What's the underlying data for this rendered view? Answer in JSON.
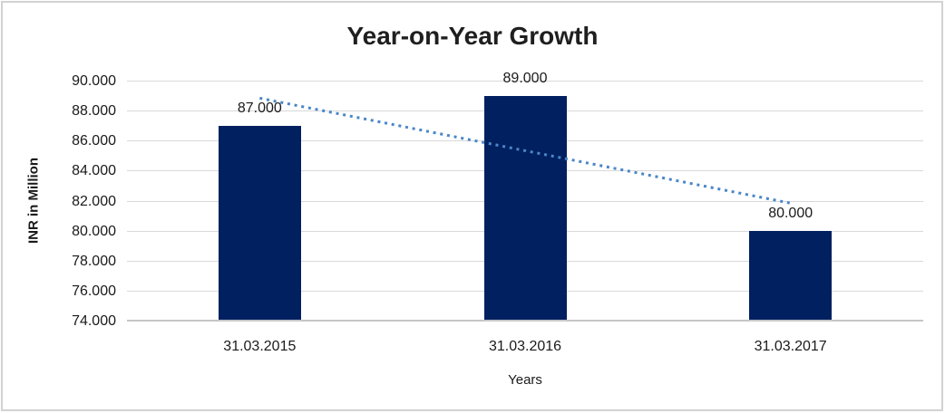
{
  "frame": {
    "background_color": "#FFFFFF",
    "border_color": "#D2D2D2"
  },
  "chart_data": {
    "type": "bar",
    "title": "Year-on-Year Growth",
    "xlabel": "Years",
    "ylabel": "INR in Million",
    "categories": [
      "31.03.2015",
      "31.03.2016",
      "31.03.2017"
    ],
    "values": [
      87,
      89,
      80
    ],
    "data_labels": [
      "87.000",
      "89.000",
      "80.000"
    ],
    "y_ticks": [
      "90.000",
      "88.000",
      "86.000",
      "84.000",
      "82.000",
      "80.000",
      "78.000",
      "76.000",
      "74.000"
    ],
    "ylim": [
      74,
      90
    ],
    "y_step": 2,
    "grid": true,
    "legend_position": "none",
    "bar_color": "#002060",
    "gridline_color": "#D9D9D9",
    "axis_line_color": "#C6C6C6",
    "trendline": {
      "type": "linear",
      "style": "dotted",
      "color": "#4A86C8",
      "start_value": 88.83,
      "end_value": 81.83
    }
  }
}
